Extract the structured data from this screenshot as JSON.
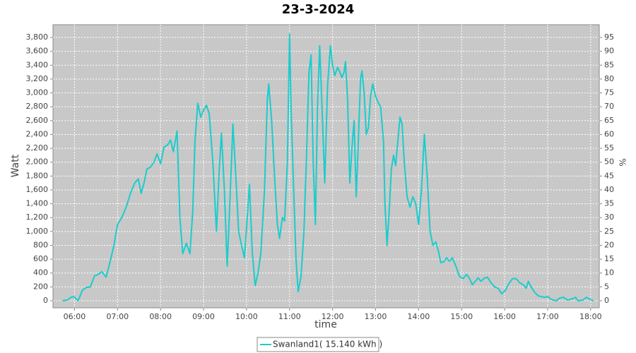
{
  "chart_data": {
    "type": "line",
    "title": "23-3-2024",
    "x_label": "time",
    "y_label": "Watt",
    "y2_label": "%",
    "x": [
      343,
      350,
      355,
      359,
      365,
      371,
      376,
      382,
      388,
      393,
      398,
      404,
      410,
      415,
      420,
      426,
      432,
      438,
      444,
      449,
      453,
      457,
      461,
      466,
      471,
      475,
      480,
      485,
      490,
      494,
      498,
      503,
      507,
      511,
      516,
      521,
      525,
      528,
      532,
      536,
      540,
      544,
      548,
      553,
      558,
      562,
      565,
      569,
      573,
      577,
      581,
      585,
      589,
      593,
      597,
      601,
      604,
      608,
      612,
      616,
      620,
      625,
      629,
      631,
      635,
      639,
      643,
      646,
      650,
      653,
      657,
      660,
      662,
      666,
      669,
      672,
      676,
      680,
      684,
      687,
      690,
      693,
      696,
      699,
      702,
      706,
      709,
      713,
      717,
      720,
      723,
      727,
      730,
      733,
      736,
      738,
      741,
      744,
      747,
      750,
      753,
      756,
      759,
      761,
      764,
      767,
      770,
      773,
      776,
      780,
      784,
      787,
      791,
      793,
      796,
      799,
      802,
      805,
      808,
      811,
      814,
      817,
      820,
      824,
      828,
      832,
      836,
      840,
      844,
      848,
      852,
      856,
      860,
      864,
      868,
      871,
      875,
      879,
      883,
      887,
      892,
      897,
      902,
      907,
      911,
      915,
      919,
      923,
      927,
      931,
      936,
      941,
      946,
      951,
      956,
      961,
      966,
      971,
      976,
      981,
      986,
      990,
      993,
      997,
      1002,
      1007,
      1015,
      1020,
      1025,
      1032,
      1037,
      1042,
      1048,
      1055,
      1059,
      1062,
      1069,
      1074,
      1079,
      1084
    ],
    "series": [
      {
        "name": "Swanland1( 15.140 kWh )",
        "color": "#1ccccc",
        "values": [
          0,
          10,
          50,
          60,
          0,
          150,
          190,
          200,
          360,
          380,
          420,
          340,
          580,
          800,
          1100,
          1200,
          1350,
          1550,
          1700,
          1760,
          1550,
          1700,
          1900,
          1930,
          2000,
          2120,
          1980,
          2220,
          2250,
          2320,
          2150,
          2450,
          1200,
          680,
          830,
          680,
          1300,
          2300,
          2850,
          2650,
          2750,
          2820,
          2700,
          2000,
          1000,
          1900,
          2420,
          1600,
          500,
          1500,
          2550,
          1800,
          1000,
          800,
          620,
          1200,
          1680,
          700,
          220,
          400,
          700,
          1600,
          2900,
          3130,
          2600,
          1800,
          1100,
          900,
          1200,
          1150,
          2000,
          3850,
          2800,
          1500,
          600,
          130,
          350,
          1000,
          2200,
          3300,
          3550,
          2000,
          1100,
          2800,
          3680,
          2600,
          1700,
          3100,
          3680,
          3400,
          3250,
          3370,
          3300,
          3220,
          3300,
          3450,
          2900,
          1700,
          2200,
          2600,
          1500,
          2300,
          3200,
          3320,
          3000,
          2400,
          2500,
          2950,
          3130,
          2950,
          2850,
          2800,
          2300,
          1400,
          800,
          1300,
          1900,
          2100,
          1950,
          2300,
          2650,
          2550,
          2000,
          1500,
          1350,
          1500,
          1400,
          1100,
          1600,
          2400,
          1800,
          1000,
          800,
          850,
          700,
          550,
          560,
          620,
          570,
          620,
          500,
          350,
          320,
          380,
          320,
          230,
          280,
          330,
          280,
          320,
          340,
          260,
          200,
          180,
          100,
          150,
          250,
          320,
          320,
          260,
          230,
          180,
          280,
          200,
          120,
          70,
          50,
          60,
          20,
          0,
          40,
          50,
          10,
          30,
          50,
          0,
          10,
          50,
          20,
          0
        ]
      }
    ],
    "xlim": [
      330,
      1092
    ],
    "xticks": [
      {
        "value": 360,
        "label": "06:00"
      },
      {
        "value": 420,
        "label": "07:00"
      },
      {
        "value": 480,
        "label": "08:00"
      },
      {
        "value": 540,
        "label": "09:00"
      },
      {
        "value": 600,
        "label": "10:00"
      },
      {
        "value": 660,
        "label": "11:00"
      },
      {
        "value": 720,
        "label": "12:00"
      },
      {
        "value": 780,
        "label": "13:00"
      },
      {
        "value": 840,
        "label": "14:00"
      },
      {
        "value": 900,
        "label": "15:00"
      },
      {
        "value": 960,
        "label": "16:00"
      },
      {
        "value": 1020,
        "label": "17:00"
      },
      {
        "value": 1080,
        "label": "18:00"
      }
    ],
    "ylim": [
      -102,
      3984
    ],
    "yticks": [
      0,
      200,
      400,
      600,
      800,
      {
        "value": 1000,
        "label": "1,000"
      },
      {
        "value": 1200,
        "label": "1,200"
      },
      {
        "value": 1400,
        "label": "1,400"
      },
      {
        "value": 1600,
        "label": "1,600"
      },
      {
        "value": 1800,
        "label": "1,800"
      },
      {
        "value": 2000,
        "label": "2,000"
      },
      {
        "value": 2200,
        "label": "2,200"
      },
      {
        "value": 2400,
        "label": "2,400"
      },
      {
        "value": 2600,
        "label": "2,600"
      },
      {
        "value": 2800,
        "label": "2,800"
      },
      {
        "value": 3000,
        "label": "3,000"
      },
      {
        "value": 3200,
        "label": "3,200"
      },
      {
        "value": 3400,
        "label": "3,400"
      },
      {
        "value": 3600,
        "label": "3,600"
      },
      {
        "value": 3800,
        "label": "3,800"
      }
    ],
    "y2lim": [
      -2.55,
      99.6
    ],
    "y2ticks": [
      0,
      5,
      10,
      15,
      20,
      25,
      30,
      35,
      40,
      45,
      50,
      55,
      60,
      65,
      70,
      75,
      80,
      85,
      90,
      95
    ],
    "grid": true
  }
}
